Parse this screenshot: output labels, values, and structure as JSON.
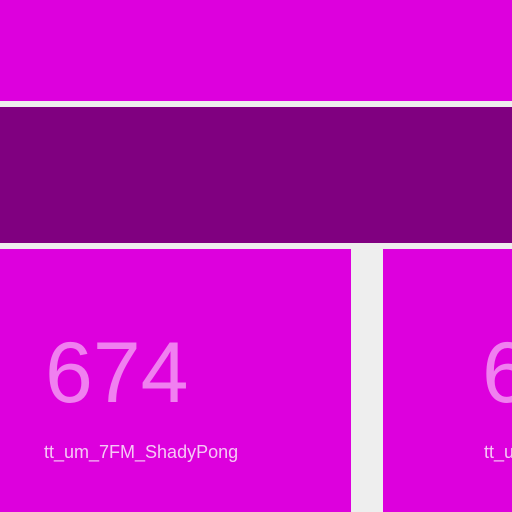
{
  "colors": {
    "background": "#eeeeee",
    "tile_magenta": "#dd00dd",
    "bar_purple": "#800080",
    "number_text": "#f080f0",
    "label_text": "#f6c8f6"
  },
  "tiles": [
    {
      "value": "674",
      "label": "tt_um_7FM_ShadyPong"
    },
    {
      "value": "6",
      "label": "tt_u"
    }
  ]
}
